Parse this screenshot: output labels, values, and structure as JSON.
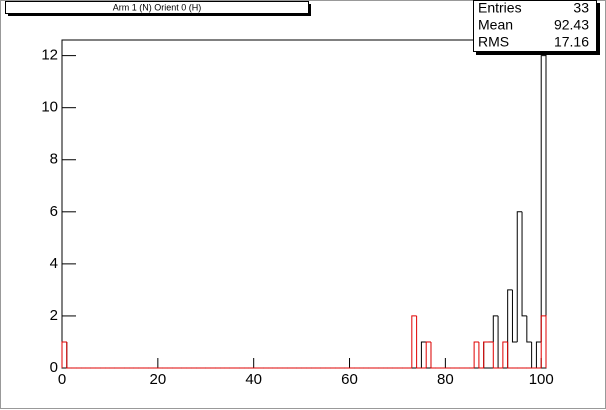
{
  "chart_data": {
    "type": "histogram",
    "title": "Arm 1 (N) Orient 0 (H)",
    "bins": [
      0,
      1,
      2,
      3,
      4,
      5,
      6,
      7,
      8,
      9,
      10,
      11,
      12,
      13,
      14,
      15,
      16,
      17,
      18,
      19,
      20,
      21,
      22,
      23,
      24,
      25,
      26,
      27,
      28,
      29,
      30,
      31,
      32,
      33,
      34,
      35,
      36,
      37,
      38,
      39,
      40,
      41,
      42,
      43,
      44,
      45,
      46,
      47,
      48,
      49,
      50,
      51,
      52,
      53,
      54,
      55,
      56,
      57,
      58,
      59,
      60,
      61,
      62,
      63,
      64,
      65,
      66,
      67,
      68,
      69,
      70,
      71,
      72,
      73,
      74,
      75,
      76,
      77,
      78,
      79,
      80,
      81,
      82,
      83,
      84,
      85,
      86,
      87,
      88,
      89,
      90,
      91,
      92,
      93,
      94,
      95,
      96,
      97,
      98,
      99,
      100,
      101
    ],
    "series": [
      {
        "color": "#000000",
        "values": [
          1,
          0,
          0,
          0,
          0,
          0,
          0,
          0,
          0,
          0,
          0,
          0,
          0,
          0,
          0,
          0,
          0,
          0,
          0,
          0,
          0,
          0,
          0,
          0,
          0,
          0,
          0,
          0,
          0,
          0,
          0,
          0,
          0,
          0,
          0,
          0,
          0,
          0,
          0,
          0,
          0,
          0,
          0,
          0,
          0,
          0,
          0,
          0,
          0,
          0,
          0,
          0,
          0,
          0,
          0,
          0,
          0,
          0,
          0,
          0,
          0,
          0,
          0,
          0,
          0,
          0,
          0,
          0,
          0,
          0,
          0,
          0,
          0,
          0,
          0,
          1,
          1,
          0,
          0,
          0,
          0,
          0,
          0,
          0,
          0,
          0,
          0,
          0,
          1,
          1,
          2,
          0,
          0,
          3,
          1,
          6,
          2,
          1,
          0,
          1,
          12
        ]
      },
      {
        "color": "#e00000",
        "values": [
          1,
          0,
          0,
          0,
          0,
          0,
          0,
          0,
          0,
          0,
          0,
          0,
          0,
          0,
          0,
          0,
          0,
          0,
          0,
          0,
          0,
          0,
          0,
          0,
          0,
          0,
          0,
          0,
          0,
          0,
          0,
          0,
          0,
          0,
          0,
          0,
          0,
          0,
          0,
          0,
          0,
          0,
          0,
          0,
          0,
          0,
          0,
          0,
          0,
          0,
          0,
          0,
          0,
          0,
          0,
          0,
          0,
          0,
          0,
          0,
          0,
          0,
          0,
          0,
          0,
          0,
          0,
          0,
          0,
          0,
          0,
          0,
          0,
          2,
          0,
          0,
          1,
          0,
          0,
          0,
          0,
          0,
          0,
          0,
          0,
          0,
          1,
          0,
          1,
          1,
          0,
          0,
          1,
          0,
          0,
          0,
          0,
          0,
          0,
          0,
          2
        ]
      }
    ],
    "xlim": [
      0,
      101
    ],
    "xticks": [
      0,
      20,
      40,
      60,
      80,
      100
    ],
    "ylim": [
      0,
      12.6
    ],
    "yticks": [
      0,
      2,
      4,
      6,
      8,
      10,
      12
    ],
    "stats": [
      {
        "label": "Entries",
        "value": 33
      },
      {
        "label": "Mean",
        "value": 92.43
      },
      {
        "label": "RMS",
        "value": 17.16
      }
    ]
  }
}
